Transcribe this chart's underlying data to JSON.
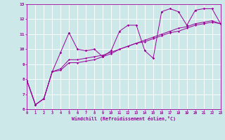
{
  "xlabel": "Windchill (Refroidissement éolien,°C)",
  "xlim": [
    0,
    23
  ],
  "ylim": [
    6,
    13
  ],
  "yticks": [
    6,
    7,
    8,
    9,
    10,
    11,
    12,
    13
  ],
  "xticks": [
    0,
    1,
    2,
    3,
    4,
    5,
    6,
    7,
    8,
    9,
    10,
    11,
    12,
    13,
    14,
    15,
    16,
    17,
    18,
    19,
    20,
    21,
    22,
    23
  ],
  "bg_color": "#cce8e8",
  "grid_color": "#aacccc",
  "line_color": "#990099",
  "series1_x": [
    0,
    1,
    2,
    3,
    4,
    5,
    6,
    7,
    8,
    9,
    10,
    11,
    12,
    13,
    14,
    15,
    16,
    17,
    18,
    19,
    20,
    21,
    22,
    23
  ],
  "series1_y": [
    7.9,
    6.3,
    6.7,
    8.5,
    9.8,
    11.1,
    10.0,
    9.9,
    10.0,
    9.5,
    9.9,
    11.2,
    11.6,
    11.6,
    9.9,
    9.4,
    12.5,
    12.7,
    12.5,
    11.6,
    12.6,
    12.7,
    12.7,
    11.7
  ],
  "series2_x": [
    0,
    1,
    2,
    3,
    4,
    5,
    6,
    7,
    8,
    9,
    10,
    11,
    12,
    13,
    14,
    15,
    16,
    17,
    18,
    19,
    20,
    21,
    22,
    23
  ],
  "series2_y": [
    7.9,
    6.3,
    6.7,
    8.5,
    8.7,
    9.3,
    9.3,
    9.4,
    9.5,
    9.6,
    9.8,
    10.0,
    10.2,
    10.4,
    10.5,
    10.7,
    10.9,
    11.1,
    11.2,
    11.4,
    11.6,
    11.7,
    11.8,
    11.7
  ],
  "series3_x": [
    0,
    1,
    2,
    3,
    4,
    5,
    6,
    7,
    8,
    9,
    10,
    11,
    12,
    13,
    14,
    15,
    16,
    17,
    18,
    19,
    20,
    21,
    22,
    23
  ],
  "series3_y": [
    7.9,
    6.3,
    6.7,
    8.5,
    8.6,
    9.1,
    9.1,
    9.2,
    9.3,
    9.5,
    9.7,
    10.0,
    10.2,
    10.4,
    10.6,
    10.8,
    11.0,
    11.2,
    11.4,
    11.5,
    11.7,
    11.8,
    11.9,
    11.7
  ]
}
